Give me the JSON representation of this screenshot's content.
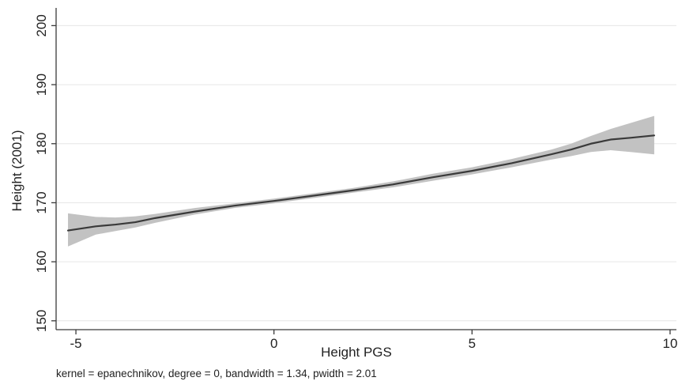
{
  "chart_data": {
    "type": "line",
    "title": "",
    "xlabel": "Height PGS",
    "ylabel": "Height (2001)",
    "note": "kernel = epanechnikov, degree = 0, bandwidth = 1.34, pwidth = 2.01",
    "xlim": [
      -5.5,
      10.2
    ],
    "ylim": [
      148.5,
      203
    ],
    "x_ticks": [
      -5,
      0,
      5,
      10
    ],
    "y_ticks": [
      150,
      160,
      170,
      180,
      190,
      200
    ],
    "x_tick_labels": [
      "-5",
      "0",
      "5",
      "10"
    ],
    "y_tick_labels": [
      "150",
      "160",
      "170",
      "180",
      "190",
      "200"
    ],
    "grid": true,
    "legend": "none",
    "colors": {
      "line": "#3a3a3a",
      "band": "#c2c2c2",
      "grid": "#e6e6e6",
      "axis": "#3a3a3a"
    },
    "series": [
      {
        "x": [
          -5.2,
          -4.5,
          -4.0,
          -3.5,
          -3.0,
          -2.0,
          -1.0,
          0.0,
          1.0,
          2.0,
          3.0,
          4.0,
          5.0,
          6.0,
          7.0,
          7.5,
          8.0,
          8.5,
          9.0,
          9.6
        ],
        "y": [
          165.3,
          166.0,
          166.3,
          166.7,
          167.4,
          168.5,
          169.5,
          170.3,
          171.2,
          172.1,
          173.1,
          174.3,
          175.4,
          176.7,
          178.2,
          179.0,
          180.0,
          180.7,
          181.0,
          181.4
        ],
        "lower": [
          162.6,
          164.6,
          165.2,
          165.8,
          166.6,
          168.0,
          169.1,
          169.9,
          170.8,
          171.7,
          172.6,
          173.7,
          174.8,
          176.0,
          177.3,
          177.9,
          178.6,
          178.9,
          178.6,
          178.2
        ],
        "upper": [
          168.2,
          167.6,
          167.5,
          167.7,
          168.1,
          169.1,
          169.9,
          170.7,
          171.6,
          172.5,
          173.6,
          174.9,
          176.0,
          177.4,
          179.0,
          180.0,
          181.3,
          182.5,
          183.5,
          184.7
        ]
      }
    ]
  }
}
